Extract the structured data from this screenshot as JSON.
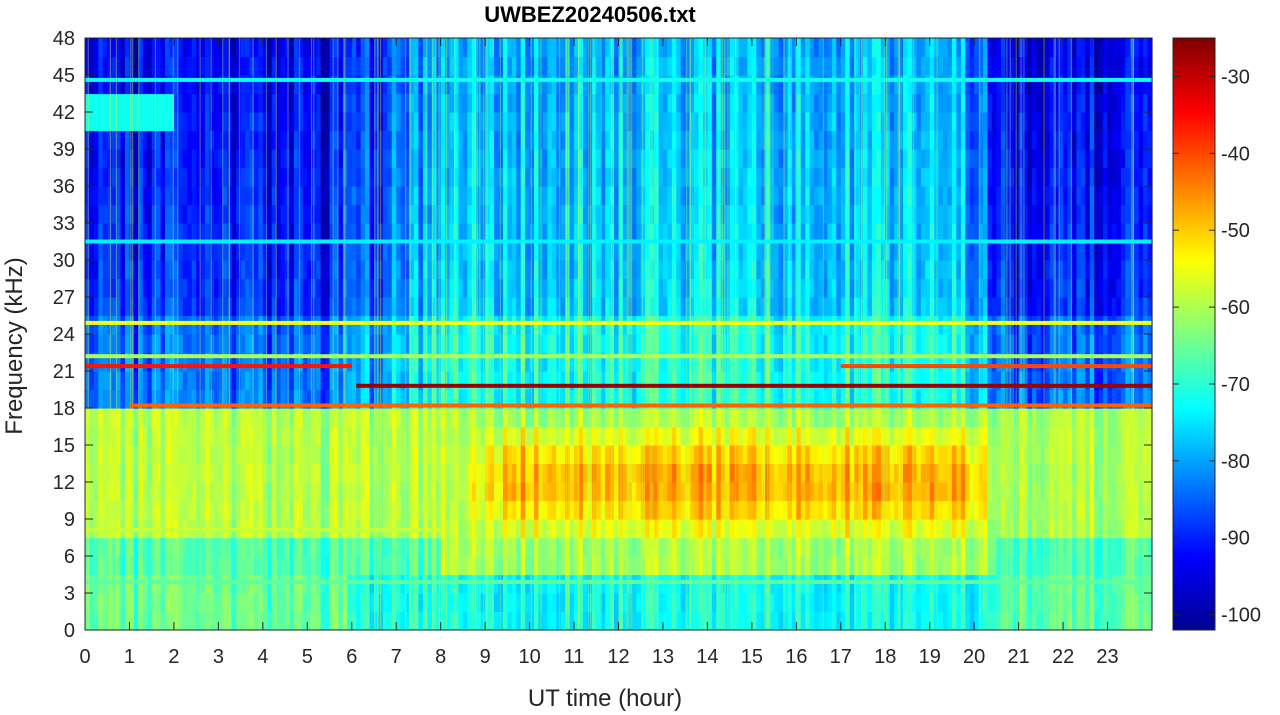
{
  "chart_data": {
    "type": "heatmap",
    "title": "UWBEZ20240506.txt",
    "xlabel": "UT time (hour)",
    "ylabel": "Frequency (kHz)",
    "xlim": [
      0,
      24
    ],
    "ylim": [
      0,
      48
    ],
    "x_ticks": [
      0,
      1,
      2,
      3,
      4,
      5,
      6,
      7,
      8,
      9,
      10,
      11,
      12,
      13,
      14,
      15,
      16,
      17,
      18,
      19,
      20,
      21,
      22,
      23
    ],
    "x_tick_labels": [
      "0",
      "1",
      "2",
      "3",
      "4",
      "5",
      "6",
      "7",
      "8",
      "9",
      "10",
      "11",
      "12",
      "13",
      "14",
      "15",
      "16",
      "17",
      "18",
      "19",
      "20",
      "21",
      "22",
      "23"
    ],
    "y_ticks": [
      0,
      3,
      6,
      9,
      12,
      15,
      18,
      21,
      24,
      27,
      30,
      33,
      36,
      39,
      42,
      45,
      48
    ],
    "y_tick_labels": [
      "0",
      "3",
      "6",
      "9",
      "12",
      "15",
      "18",
      "21",
      "24",
      "27",
      "30",
      "33",
      "36",
      "39",
      "42",
      "45",
      "48"
    ],
    "colormap": "jet",
    "colorbar": {
      "clim": [
        -102,
        -25
      ],
      "ticks": [
        -100,
        -90,
        -80,
        -70,
        -60,
        -50,
        -40,
        -30
      ],
      "tick_labels": [
        "-100",
        "-90",
        "-80",
        "-70",
        "-60",
        "-50",
        "-40",
        "-30"
      ],
      "position": "right"
    },
    "features": {
      "narrowband_lines": [
        {
          "freq_khz": 19.8,
          "t_start": 6.1,
          "t_end": 24,
          "level_db": -27
        },
        {
          "freq_khz": 18.2,
          "t_start": 1.0,
          "t_end": 24,
          "level_db": -42
        },
        {
          "freq_khz": 21.4,
          "t_start": 0,
          "t_end": 6,
          "level_db": -36
        },
        {
          "freq_khz": 21.4,
          "t_start": 17,
          "t_end": 24,
          "level_db": -40
        },
        {
          "freq_khz": 24.9,
          "t_start": 0,
          "t_end": 24,
          "level_db": -55
        },
        {
          "freq_khz": 22.2,
          "t_start": 0,
          "t_end": 24,
          "level_db": -60
        },
        {
          "freq_khz": 44.6,
          "t_start": 0,
          "t_end": 24,
          "level_db": -72
        },
        {
          "freq_khz": 31.5,
          "t_start": 0,
          "t_end": 24,
          "level_db": -74
        },
        {
          "freq_khz": 8.1,
          "t_start": 0,
          "t_end": 8,
          "level_db": -58
        },
        {
          "freq_khz": 3.9,
          "t_start": 0,
          "t_end": 24,
          "level_db": -66
        }
      ],
      "daytime_enhancement": {
        "t_start": 8.3,
        "t_end": 20.6,
        "freq_khz": [
          7,
          17
        ],
        "peak_level_db": -47
      },
      "background_level_db": {
        "low_band_0_18kHz": -60,
        "high_band_night": -88,
        "high_band_day": -74
      }
    }
  }
}
